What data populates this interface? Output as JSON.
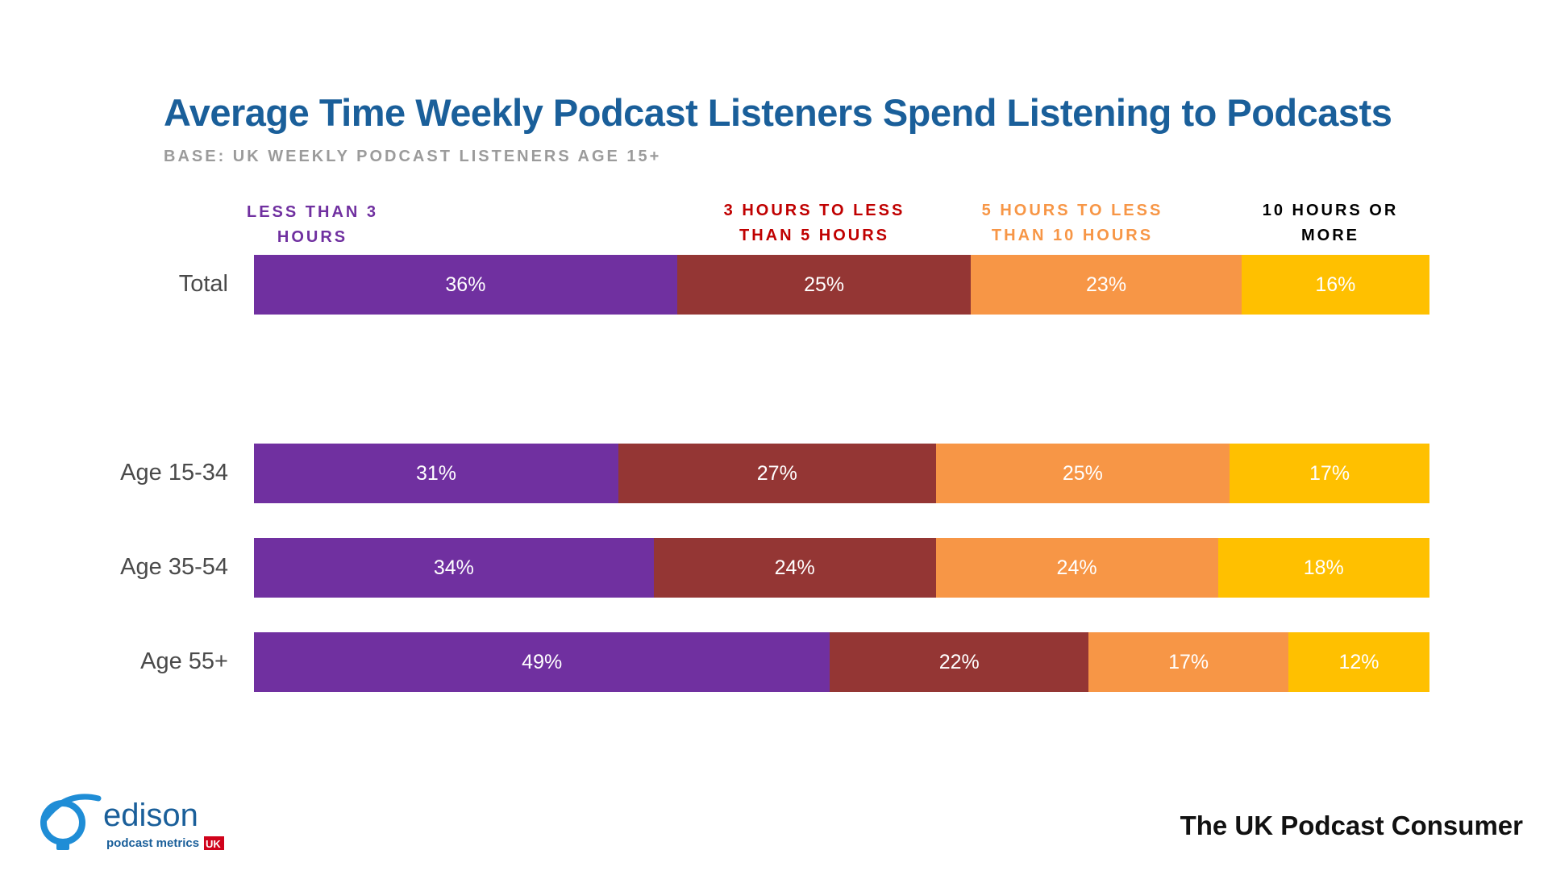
{
  "chart_data": {
    "type": "bar",
    "orientation": "horizontal",
    "stacked": true,
    "title": "Average Time Weekly Podcast Listeners Spend Listening to Podcasts",
    "subtitle": "BASE: UK WEEKLY PODCAST LISTENERS AGE 15+",
    "categories": [
      "Total",
      "Age 15-34",
      "Age 35-54",
      "Age 55+"
    ],
    "series": [
      {
        "name": "LESS THAN 3 HOURS",
        "color": "#7030a0",
        "values": [
          36,
          31,
          34,
          49
        ]
      },
      {
        "name": "3 HOURS TO LESS THAN 5 HOURS",
        "color": "#943634",
        "values": [
          25,
          27,
          24,
          22
        ]
      },
      {
        "name": "5 HOURS TO LESS THAN 10 HOURS",
        "color": "#f79646",
        "values": [
          23,
          25,
          24,
          17
        ]
      },
      {
        "name": "10 HOURS OR MORE",
        "color": "#ffc000",
        "values": [
          16,
          17,
          18,
          12
        ]
      }
    ],
    "value_suffix": "%",
    "legend_text_colors": [
      "#7030a0",
      "#c00000",
      "#f79646",
      "#000000"
    ],
    "legend_position": "top"
  },
  "footer": {
    "brand": "The UK Podcast Consumer",
    "logo_text": "edison",
    "logo_subtext": "podcast metrics",
    "logo_badge": "UK"
  }
}
